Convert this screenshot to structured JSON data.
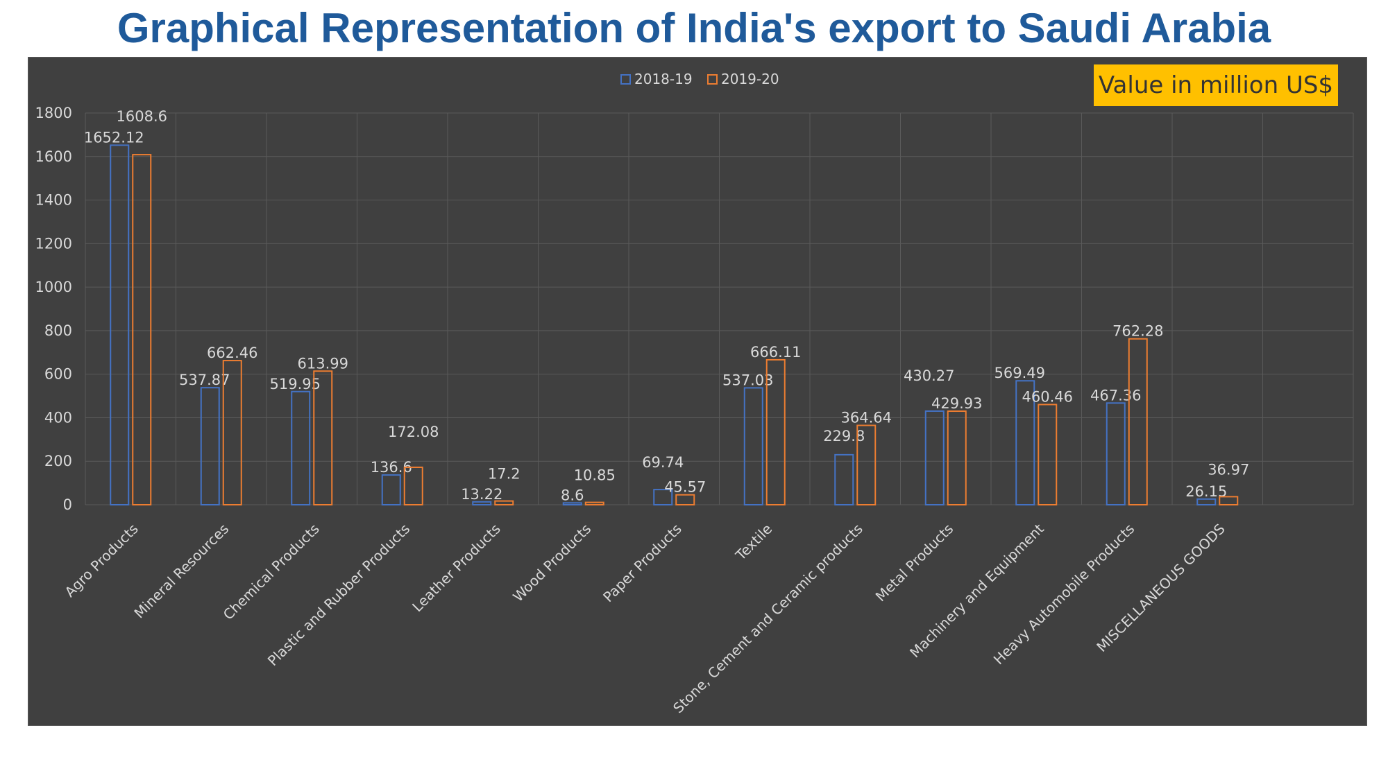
{
  "page": {
    "title": "Graphical Representation of India's export to Saudi Arabia",
    "badge": "Value in million US$"
  },
  "chart_data": {
    "type": "bar",
    "title": "Graphical Representation of India's export to Saudi Arabia",
    "xlabel": "",
    "ylabel": "",
    "unit_note": "Value in million US$",
    "ylim": [
      0,
      1800
    ],
    "yticks": [
      0,
      200,
      400,
      600,
      800,
      1000,
      1200,
      1400,
      1600,
      1800
    ],
    "grid": true,
    "legend_position": "top-center",
    "categories": [
      "Agro Products",
      "Mineral Resources",
      "Chemical Products",
      "Plastic and Rubber Products",
      "Leather Products",
      "Wood Products",
      "Paper Products",
      "Textile",
      "Stone, Cement and Ceramic products",
      "Metal Products",
      "Machinery and Equipment",
      "Heavy Automobile Products",
      "MISCELLANEOUS GOODS"
    ],
    "series": [
      {
        "name": "2018-19",
        "color": "#4472c4",
        "values": [
          1652.12,
          537.87,
          519.95,
          136.6,
          13.22,
          8.6,
          69.74,
          537.03,
          229.8,
          430.27,
          569.49,
          467.36,
          26.15
        ],
        "labels": [
          "1652.12",
          "537.87",
          "519.95",
          "136.6",
          "13.22",
          "8.6",
          "69.74",
          "537.03",
          "229.8",
          "430.27",
          "569.49",
          "467.36",
          "26.15"
        ]
      },
      {
        "name": "2019-20",
        "color": "#ed7d31",
        "values": [
          1608.6,
          662.46,
          613.99,
          172.08,
          17.2,
          10.85,
          45.57,
          666.11,
          364.64,
          429.93,
          460.46,
          762.28,
          36.97
        ],
        "labels": [
          "1608.6",
          "662.46",
          "613.99",
          "172.08",
          "17.2",
          "10.85",
          "45.57",
          "666.11",
          "364.64",
          "429.93",
          "460.46",
          "762.28",
          "36.97"
        ]
      }
    ]
  },
  "colors": {
    "title": "#1f5a9a",
    "panel": "#404040",
    "badge": "#ffc000",
    "text": "#d9d9d9"
  }
}
